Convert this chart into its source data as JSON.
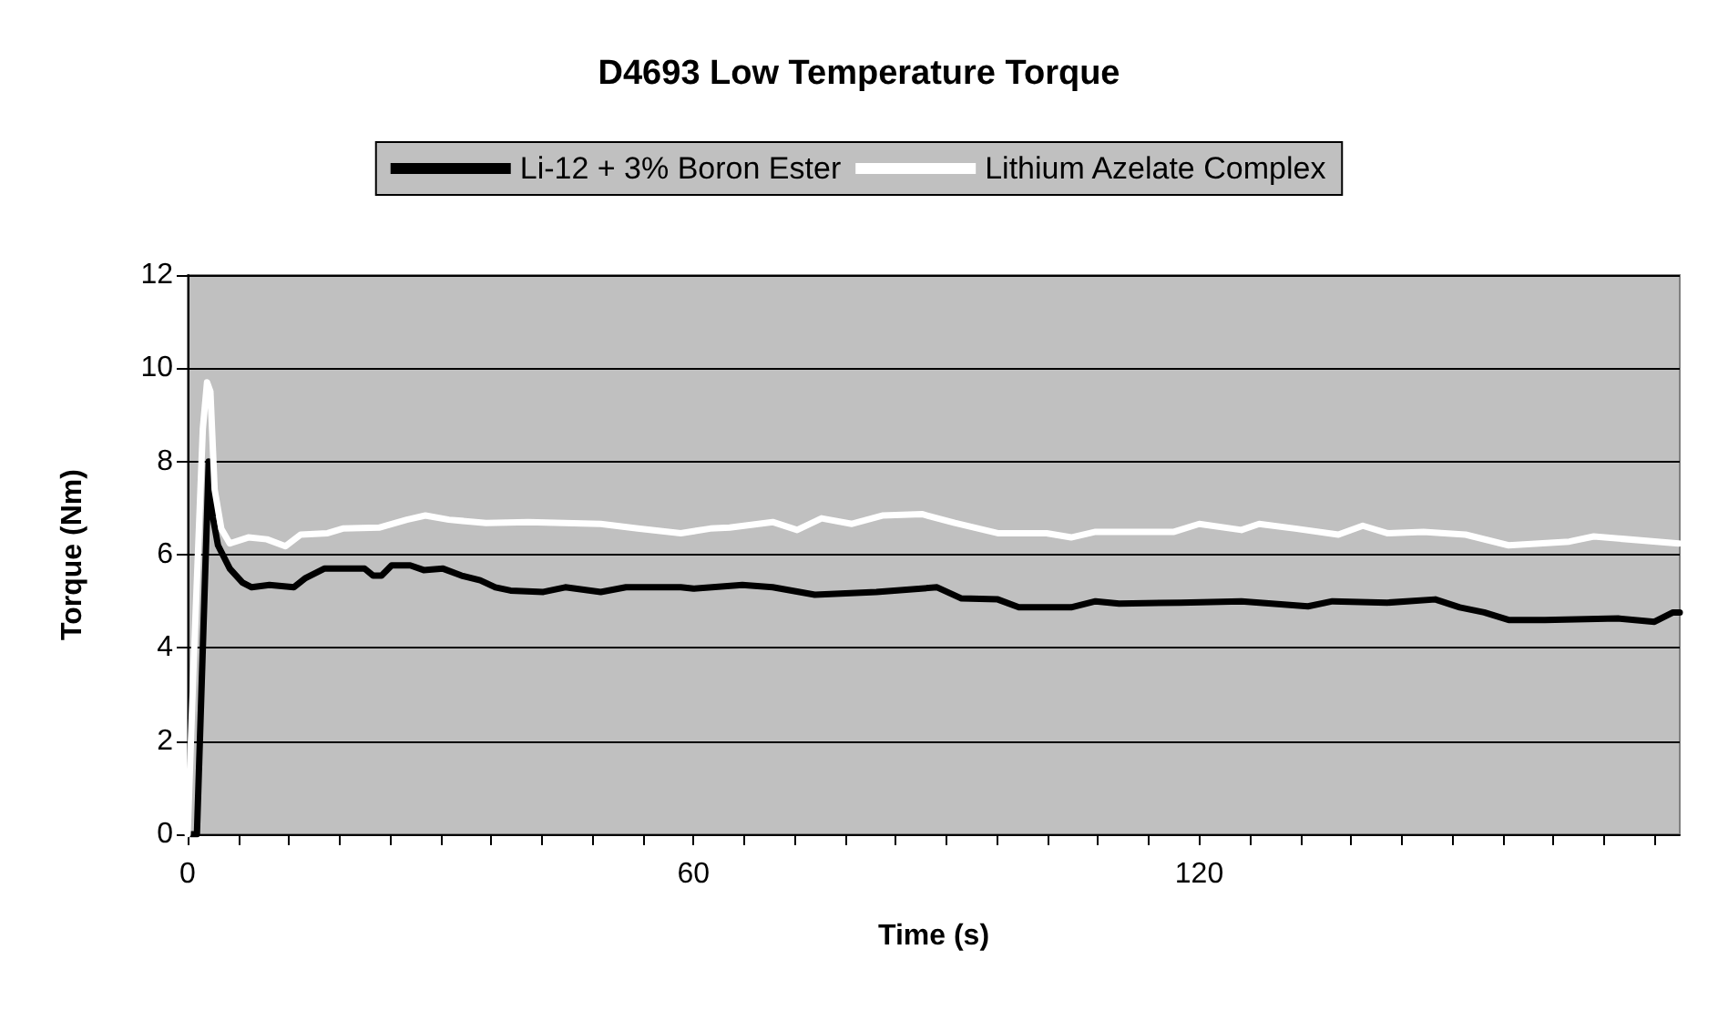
{
  "chart_data": {
    "type": "line",
    "title": "D4693 Low Temperature Torque",
    "xlabel": "Time (s)",
    "ylabel": "Torque (Nm)",
    "xlim": [
      0,
      177
    ],
    "ylim": [
      0,
      12
    ],
    "xticks": [
      0,
      {
        "value": 6,
        "label": null
      },
      {
        "value": 12,
        "label": null
      },
      {
        "value": 18,
        "label": null
      },
      {
        "value": 24,
        "label": null
      },
      {
        "value": 30,
        "label": null
      },
      {
        "value": 36,
        "label": null
      },
      {
        "value": 42,
        "label": null
      },
      {
        "value": 48,
        "label": null
      },
      {
        "value": 54,
        "label": null
      },
      60,
      {
        "value": 66,
        "label": null
      },
      {
        "value": 72,
        "label": null
      },
      {
        "value": 78,
        "label": null
      },
      {
        "value": 84,
        "label": null
      },
      {
        "value": 90,
        "label": null
      },
      {
        "value": 96,
        "label": null
      },
      {
        "value": 102,
        "label": null
      },
      {
        "value": 108,
        "label": null
      },
      {
        "value": 114,
        "label": null
      },
      120,
      {
        "value": 126,
        "label": null
      },
      {
        "value": 132,
        "label": null
      },
      {
        "value": 138,
        "label": null
      },
      {
        "value": 144,
        "label": null
      },
      {
        "value": 150,
        "label": null
      },
      {
        "value": 156,
        "label": null
      },
      {
        "value": 162,
        "label": null
      },
      {
        "value": 168,
        "label": null
      },
      {
        "value": 174,
        "label": null
      }
    ],
    "yticks": [
      0,
      2,
      4,
      6,
      8,
      10,
      12
    ],
    "grid": "y",
    "legend": "top",
    "marker": "none",
    "line_style": "solid",
    "series": [
      {
        "name": "Li-12 + 3% Boron Ester",
        "color": "#000000",
        "x": [
          0.4,
          1.1,
          2.5,
          3,
          3.6,
          5,
          6.5,
          7.6,
          9.7,
          12.6,
          14,
          16.2,
          18.8,
          21,
          22,
          23,
          24.2,
          26.4,
          28,
          30.3,
          32.5,
          34.7,
          36.5,
          38.3,
          42.2,
          44.8,
          49,
          52,
          58.5,
          60,
          65.8,
          69.4,
          74.4,
          81.7,
          88.9,
          91.8,
          96.1,
          98.6,
          104.8,
          107.7,
          110.5,
          117.8,
          125,
          132.9,
          135.8,
          142.3,
          148,
          150.9,
          153.8,
          156.7,
          161,
          169.7,
          174,
          176.2,
          177
        ],
        "values": [
          0,
          0,
          8,
          6.8,
          6.2,
          5.7,
          5.4,
          5.3,
          5.35,
          5.3,
          5.5,
          5.7,
          5.7,
          5.7,
          5.55,
          5.55,
          5.77,
          5.77,
          5.67,
          5.7,
          5.55,
          5.45,
          5.3,
          5.23,
          5.2,
          5.3,
          5.2,
          5.3,
          5.3,
          5.27,
          5.35,
          5.3,
          5.14,
          5.2,
          5.3,
          5.06,
          5.04,
          4.87,
          4.87,
          5,
          4.95,
          4.97,
          5,
          4.89,
          5,
          4.97,
          5.04,
          4.87,
          4.76,
          4.6,
          4.6,
          4.63,
          4.56,
          4.76,
          4.76
        ]
      },
      {
        "name": "Lithium Azelate Complex",
        "color": "#ffffff",
        "x": [
          0,
          0.7,
          1.8,
          2.3,
          2.7,
          3.2,
          4,
          5,
          7.2,
          9.4,
          11.6,
          13.4,
          16.6,
          18.4,
          22.7,
          26,
          28.2,
          31,
          35.4,
          40.4,
          49,
          53.4,
          58.5,
          62,
          64.3,
          69.4,
          72.3,
          75.2,
          78.8,
          82.4,
          87.1,
          91,
          96.1,
          101.9,
          104.8,
          107.7,
          117,
          120,
          125,
          127.1,
          131.4,
          136.5,
          139.4,
          142.3,
          146.6,
          151.6,
          156.7,
          163.9,
          166.8,
          176.9
        ],
        "values": [
          0,
          3.6,
          8.7,
          9.7,
          9.5,
          7.4,
          6.55,
          6.24,
          6.37,
          6.33,
          6.18,
          6.43,
          6.46,
          6.56,
          6.58,
          6.75,
          6.84,
          6.75,
          6.68,
          6.7,
          6.66,
          6.56,
          6.46,
          6.56,
          6.58,
          6.7,
          6.53,
          6.78,
          6.66,
          6.84,
          6.87,
          6.68,
          6.46,
          6.46,
          6.37,
          6.49,
          6.49,
          6.66,
          6.53,
          6.66,
          6.56,
          6.43,
          6.62,
          6.46,
          6.49,
          6.43,
          6.2,
          6.28,
          6.39,
          6.24
        ]
      }
    ]
  }
}
